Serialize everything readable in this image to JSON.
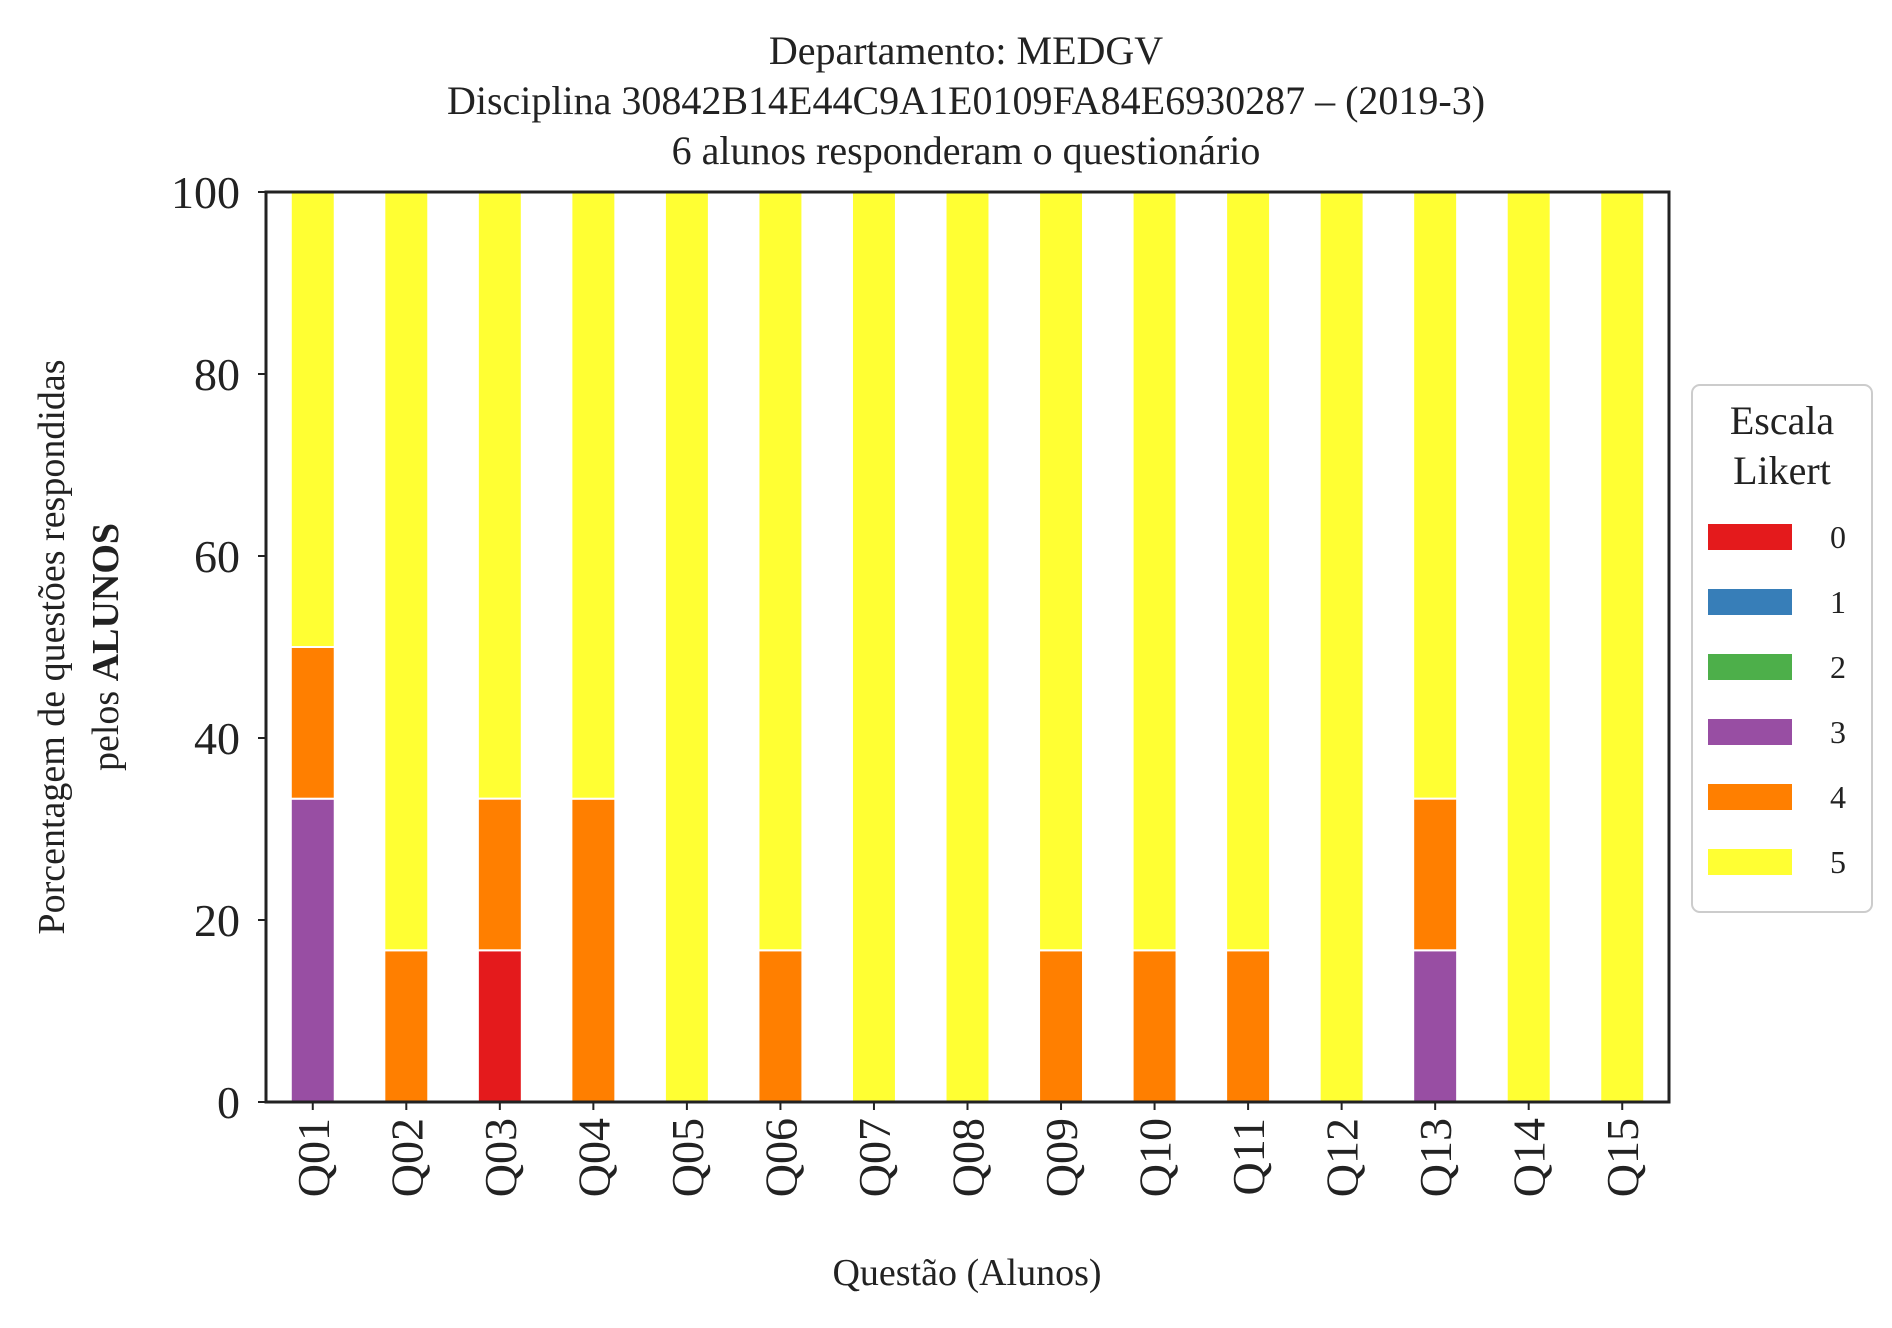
{
  "chart_data": {
    "type": "bar",
    "stacked": true,
    "title_lines": [
      "Departamento: MEDGV",
      "Disciplina 30842B14E44C9A1E0109FA84E6930287 – (2019-3)",
      "6 alunos responderam o questionário"
    ],
    "xlabel": "Questão (Alunos)",
    "ylabel_line1": "Porcentagem de questões respondidas",
    "ylabel_line2_prefix": "pelos ",
    "ylabel_line2_bold": "ALUNOS",
    "ylim": [
      0,
      100
    ],
    "yticks": [
      "0",
      "20",
      "40",
      "60",
      "80",
      "100"
    ],
    "grid": false,
    "legend_position": "right",
    "legend_title_lines": [
      "Escala",
      "Likert"
    ],
    "categories": [
      "Q01",
      "Q02",
      "Q03",
      "Q04",
      "Q05",
      "Q06",
      "Q07",
      "Q08",
      "Q09",
      "Q10",
      "Q11",
      "Q12",
      "Q13",
      "Q14",
      "Q15"
    ],
    "series": [
      {
        "name": "0",
        "color": "#e41a1c",
        "values": [
          0,
          0,
          16.67,
          0,
          0,
          0,
          0,
          0,
          0,
          0,
          0,
          0,
          0,
          0,
          0
        ]
      },
      {
        "name": "1",
        "color": "#377eb8",
        "values": [
          0,
          0,
          0,
          0,
          0,
          0,
          0,
          0,
          0,
          0,
          0,
          0,
          0,
          0,
          0
        ]
      },
      {
        "name": "2",
        "color": "#4daf4a",
        "values": [
          0,
          0,
          0,
          0,
          0,
          0,
          0,
          0,
          0,
          0,
          0,
          0,
          0,
          0,
          0
        ]
      },
      {
        "name": "3",
        "color": "#984ea3",
        "values": [
          33.33,
          0,
          0,
          0,
          0,
          0,
          0,
          0,
          0,
          0,
          0,
          0,
          16.67,
          0,
          0
        ]
      },
      {
        "name": "4",
        "color": "#ff7f00",
        "values": [
          16.67,
          16.67,
          16.67,
          33.33,
          0,
          16.67,
          0,
          0,
          16.67,
          16.67,
          16.67,
          0,
          16.67,
          0,
          0
        ]
      },
      {
        "name": "5",
        "color": "#ffff33",
        "values": [
          50,
          83.33,
          66.67,
          66.67,
          100,
          83.33,
          100,
          100,
          83.33,
          83.33,
          83.33,
          100,
          66.67,
          100,
          100
        ]
      }
    ]
  }
}
